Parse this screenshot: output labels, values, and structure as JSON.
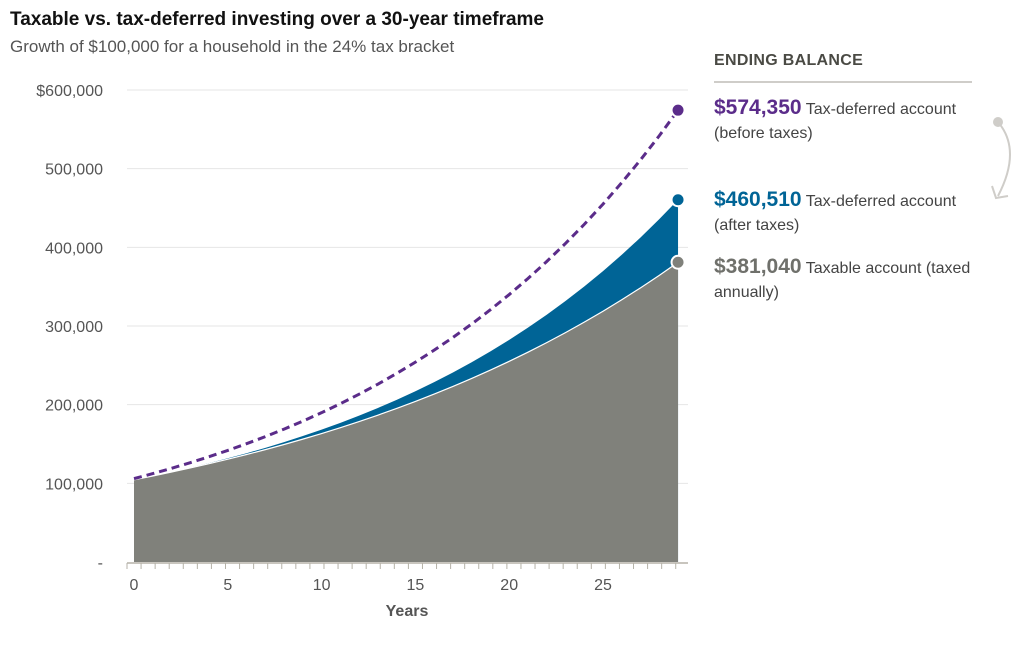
{
  "chart_data": {
    "type": "area",
    "title": "Taxable vs. tax-deferred investing over a 30-year timeframe",
    "subtitle": "Growth of $100,000 for a household in the 24% tax bracket",
    "xlabel": "Years",
    "ylabel": "",
    "xlim": [
      0,
      29
    ],
    "ylim": [
      0,
      600000
    ],
    "x_ticks": [
      "0",
      "5",
      "10",
      "15",
      "20",
      "25"
    ],
    "x_tick_values": [
      0,
      5,
      10,
      15,
      20,
      25
    ],
    "y_ticks": [
      "-",
      "100,000",
      "200,000",
      "300,000",
      "400,000",
      "500,000",
      "$600,000"
    ],
    "y_tick_values": [
      0,
      100000,
      200000,
      300000,
      400000,
      500000,
      600000
    ],
    "grid": "horizontal",
    "x": [
      0,
      1,
      2,
      3,
      4,
      5,
      6,
      7,
      8,
      9,
      10,
      11,
      12,
      13,
      14,
      15,
      16,
      17,
      18,
      19,
      20,
      21,
      22,
      23,
      24,
      25,
      26,
      27,
      28,
      29
    ],
    "series": [
      {
        "key": "pretax",
        "style": "dashed-line",
        "color": "#5b2c8a",
        "values": [
          106000,
          112360,
          119102,
          126248,
          133823,
          141852,
          150363,
          159385,
          168948,
          179085,
          189830,
          201220,
          213293,
          226090,
          239656,
          254035,
          269277,
          285434,
          302560,
          320714,
          339956,
          360354,
          381975,
          404893,
          429187,
          454938,
          482235,
          511169,
          541839,
          574350
        ]
      },
      {
        "key": "aftertax",
        "style": "area",
        "color": "#006496",
        "values": [
          104560,
          109394,
          114518,
          119948,
          125705,
          131808,
          138276,
          145133,
          152400,
          160105,
          168271,
          176927,
          186103,
          195828,
          206139,
          217067,
          228651,
          240930,
          253946,
          267743,
          282367,
          297869,
          314301,
          331719,
          350182,
          369753,
          390499,
          412488,
          435798,
          460510
        ]
      },
      {
        "key": "taxable",
        "style": "area",
        "color": "#80817b",
        "values": [
          104560,
          109328,
          114314,
          119526,
          124977,
          130676,
          136635,
          142865,
          149380,
          156192,
          163314,
          170761,
          178548,
          186690,
          195203,
          204104,
          213412,
          223143,
          233319,
          243958,
          255083,
          266715,
          278877,
          291594,
          304891,
          318794,
          333331,
          348531,
          364424,
          381040
        ]
      }
    ]
  },
  "side": {
    "heading": "ENDING BALANCE",
    "entries": [
      {
        "value": "$574,350",
        "label": "Tax-deferred account (before taxes)",
        "color": "#5b2c8a"
      },
      {
        "value": "$460,510",
        "label": "Tax-deferred account (after taxes)",
        "color": "#006496"
      },
      {
        "value": "$381,040",
        "label": "Taxable account (taxed annually)",
        "color": "#6f706b"
      }
    ],
    "arrow_icon": "curved-arrow-down"
  }
}
